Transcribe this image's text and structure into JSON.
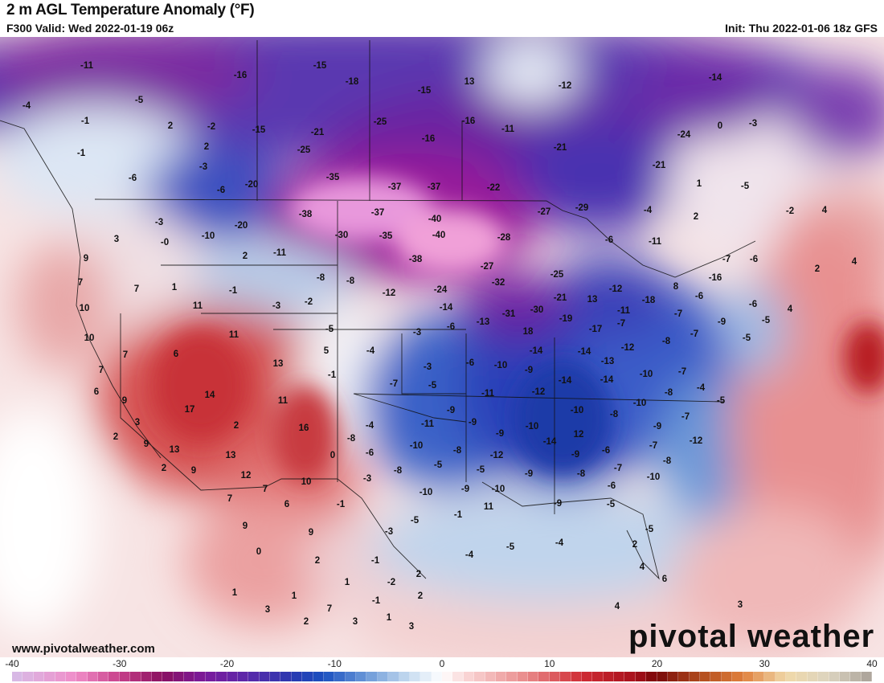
{
  "header": {
    "title": "2 m AGL Temperature Anomaly (°F)",
    "valid": "F300 Valid: Wed 2022-01-19 06z",
    "init": "Init: Thu 2022-01-06 18z GFS"
  },
  "footer": {
    "website": "www.pivotalweather.com",
    "logo": "pivotal weather"
  },
  "colorbar": {
    "ticks": [
      "-40",
      "-30",
      "-20",
      "-10",
      "0",
      "10",
      "20",
      "30",
      "40"
    ],
    "min": -40,
    "max": 40,
    "stops": [
      {
        "v": -40,
        "c": "#d6bde8"
      },
      {
        "v": -34,
        "c": "#f08cc8"
      },
      {
        "v": -30,
        "c": "#c8408a"
      },
      {
        "v": -26,
        "c": "#8a1060"
      },
      {
        "v": -22,
        "c": "#7a1a9c"
      },
      {
        "v": -18,
        "c": "#5a28aa"
      },
      {
        "v": -14,
        "c": "#2a38b0"
      },
      {
        "v": -11,
        "c": "#1a50c0"
      },
      {
        "v": -7,
        "c": "#6a98d8"
      },
      {
        "v": -3,
        "c": "#c8dcf0"
      },
      {
        "v": 0,
        "c": "#ffffff"
      },
      {
        "v": 2,
        "c": "#fadada"
      },
      {
        "v": 8,
        "c": "#e88888"
      },
      {
        "v": 13,
        "c": "#d02c34"
      },
      {
        "v": 18,
        "c": "#a8101c"
      },
      {
        "v": 20,
        "c": "#780808"
      },
      {
        "v": 24,
        "c": "#b04a1c"
      },
      {
        "v": 28,
        "c": "#e0803c"
      },
      {
        "v": 32,
        "c": "#f0d8a8"
      },
      {
        "v": 36,
        "c": "#ddd4c0"
      },
      {
        "v": 40,
        "c": "#a8a098"
      }
    ]
  },
  "map": {
    "anomaly_labels": [
      "-11",
      "-15",
      "-18",
      "-15",
      "13",
      "-12",
      "-14",
      "-4",
      "-5",
      "-16",
      "-1",
      "2",
      "-2",
      "-15",
      "-21",
      "-25",
      "-16",
      "-11",
      "0",
      "-3",
      "-16",
      "-1",
      "2",
      "-25",
      "-21",
      "-24",
      "-6",
      "-3",
      "-35",
      "-37",
      "-37",
      "-22",
      "-21",
      "-6",
      "-20",
      "1",
      "-5",
      "-27",
      "-29",
      "-4",
      "-2",
      "4",
      "-38",
      "-37",
      "-40",
      "2",
      "-3",
      "-20",
      "-10",
      "-30",
      "-35",
      "-40",
      "-28",
      "-6",
      "-11",
      "3",
      "-0",
      "9",
      "2",
      "-11",
      "-38",
      "-27",
      "-7",
      "-6",
      "4",
      "2",
      "-8",
      "-8",
      "-32",
      "-25",
      "-16",
      "7",
      "7",
      "1",
      "-1",
      "-12",
      "-24",
      "-12",
      "8",
      "-6",
      "-6",
      "10",
      "11",
      "-3",
      "-2",
      "-14",
      "-31",
      "-30",
      "-21",
      "13",
      "-18",
      "-11",
      "-7",
      "4",
      "-13",
      "-19",
      "-7",
      "-9",
      "-5",
      "10",
      "11",
      "-5",
      "-3",
      "-6",
      "18",
      "-17",
      "-7",
      "-8",
      "7",
      "6",
      "5",
      "-4",
      "-14",
      "-14",
      "-12",
      "-5",
      "13",
      "-3",
      "-6",
      "-10",
      "-9",
      "-13",
      "7",
      "-1",
      "-7",
      "-5",
      "-14",
      "-14",
      "-10",
      "-7",
      "6",
      "14",
      "11",
      "-11",
      "-12",
      "-8",
      "-4",
      "9",
      "17",
      "-10",
      "-8",
      "-10",
      "-5",
      "2",
      "16",
      "-4",
      "-11",
      "-9",
      "-9",
      "-10",
      "12",
      "-9",
      "-7",
      "3",
      "2",
      "-9",
      "-14",
      "-6",
      "-7",
      "-12",
      "9",
      "13",
      "-8",
      "-10",
      "-8",
      "-12",
      "-9",
      "-6",
      "0",
      "13",
      "-8",
      "2",
      "9",
      "-5",
      "-8",
      "-5",
      "-9",
      "-8",
      "-7",
      "-10",
      "12",
      "-3",
      "10",
      "-6",
      "7",
      "-10",
      "-9",
      "-10",
      "7",
      "6",
      "-1",
      "11",
      "-5",
      "-1",
      "-9",
      "9",
      "-5",
      "9",
      "-3",
      "-5",
      "0",
      "2",
      "-1",
      "-4",
      "-5",
      "-4",
      "2",
      "4",
      "2",
      "6",
      "1",
      "-2",
      "1",
      "1",
      "2",
      "-1",
      "7",
      "3",
      "2",
      "3",
      "1",
      "3",
      "4",
      "3"
    ]
  }
}
